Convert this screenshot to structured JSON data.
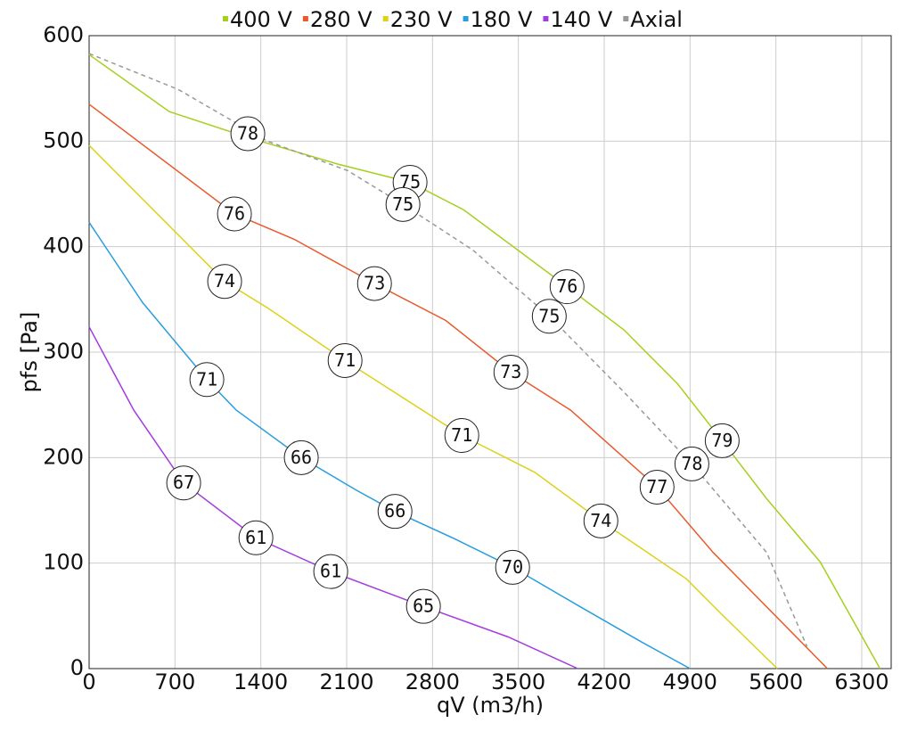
{
  "chart_data": {
    "type": "line",
    "x_label": "qV (m3/h)",
    "y_label": "pfs [Pa]",
    "xlim": [
      0,
      6540
    ],
    "ylim": [
      0,
      600
    ],
    "xticks": [
      0,
      700,
      1400,
      2100,
      2800,
      3500,
      4200,
      4900,
      5600,
      6300
    ],
    "yticks": [
      0,
      100,
      200,
      300,
      400,
      500,
      600
    ],
    "grid": true,
    "legend": "top",
    "series": [
      {
        "name": "400 V",
        "color": "#a6d01f",
        "dashed": false,
        "x": [
          0,
          654,
          1309,
          2036,
          2617,
          3053,
          3897,
          4362,
          4798,
          5162,
          5525,
          5962,
          6449
        ],
        "values": [
          582,
          528,
          503,
          478,
          461,
          435,
          362,
          321,
          270,
          216,
          161,
          101,
          0
        ],
        "markers": {
          "x": [
            1294,
            2617,
            3897,
            5162
          ],
          "y": [
            507,
            461,
            362,
            216
          ],
          "labels": [
            78,
            75,
            76,
            79
          ]
        }
      },
      {
        "name": "280 V",
        "color": "#e85a2c",
        "dashed": false,
        "x": [
          0,
          1185,
          1672,
          2327,
          2908,
          3439,
          3926,
          4631,
          5089,
          6020
        ],
        "values": [
          535,
          431,
          407,
          365,
          330,
          281,
          245,
          172,
          110,
          0
        ],
        "markers": {
          "x": [
            1185,
            2327,
            3439,
            4631
          ],
          "y": [
            431,
            365,
            281,
            172
          ],
          "labels": [
            76,
            73,
            73,
            77
          ]
        }
      },
      {
        "name": "230 V",
        "color": "#dcd21c",
        "dashed": false,
        "x": [
          0,
          1105,
          1454,
          2087,
          3039,
          3635,
          4173,
          4871,
          5162,
          5612
        ],
        "values": [
          496,
          367,
          342,
          292,
          221,
          186,
          140,
          85,
          51,
          0
        ],
        "markers": {
          "x": [
            1105,
            2087,
            3039,
            4173
          ],
          "y": [
            367,
            292,
            221,
            140
          ],
          "labels": [
            74,
            71,
            71,
            74
          ]
        }
      },
      {
        "name": "180 V",
        "color": "#2a9de0",
        "dashed": false,
        "x": [
          0,
          436,
          960,
          1200,
          1730,
          2181,
          2494,
          2981,
          3453,
          3999,
          4508,
          4900
        ],
        "values": [
          423,
          347,
          274,
          245,
          200,
          169,
          149,
          123,
          96,
          59,
          25,
          0
        ],
        "markers": {
          "x": [
            960,
            1730,
            2494,
            3453
          ],
          "y": [
            274,
            200,
            149,
            96
          ],
          "labels": [
            71,
            66,
            66,
            70
          ]
        }
      },
      {
        "name": "140 V",
        "color": "#a43ce0",
        "dashed": false,
        "x": [
          0,
          364,
          771,
          1360,
          1970,
          2726,
          3417,
          3984
        ],
        "values": [
          324,
          245,
          176,
          124,
          92,
          59,
          30,
          0
        ],
        "markers": {
          "x": [
            771,
            1360,
            1970,
            2726
          ],
          "y": [
            176,
            124,
            92,
            59
          ],
          "labels": [
            67,
            61,
            61,
            65
          ]
        }
      },
      {
        "name": "Axial",
        "color": "#999999",
        "dashed": true,
        "x": [
          0,
          727,
          1454,
          2109,
          2559,
          3126,
          3752,
          4362,
          4915,
          5525,
          5853
        ],
        "values": [
          583,
          549,
          500,
          472,
          440,
          397,
          334,
          262,
          194,
          110,
          21
        ],
        "markers": {
          "x": [
            4915,
            2559,
            3752
          ],
          "y": [
            194,
            440,
            334
          ],
          "labels": [
            78,
            75,
            75
          ]
        }
      }
    ]
  }
}
